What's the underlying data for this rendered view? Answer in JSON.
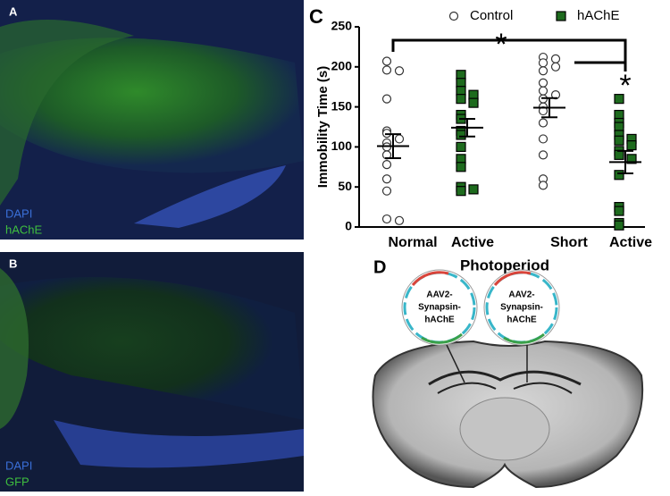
{
  "panels": {
    "A": {
      "label": "A",
      "stains": [
        "DAPI",
        "hAChE"
      ]
    },
    "B": {
      "label": "B",
      "stains": [
        "DAPI",
        "GFP"
      ]
    },
    "D": {
      "label": "D",
      "vectors": [
        [
          "AAV2-",
          "Synapsin-",
          "hAChE"
        ],
        [
          "AAV2-",
          "Synapsin-",
          "hAChE"
        ]
      ]
    }
  },
  "chart_data": {
    "type": "dot",
    "label": "C",
    "ylabel": "Immobility Time (s)",
    "xlabel": "Photoperiod",
    "categories": [
      "Normal",
      "Active",
      "Short",
      "Active"
    ],
    "ylim": [
      0,
      250
    ],
    "yticks": [
      0,
      50,
      100,
      150,
      200,
      250
    ],
    "series": [
      {
        "name": "Control",
        "color": "#ffffff",
        "marker": "circle"
      },
      {
        "name": "hAChE",
        "color": "#1e6b1e",
        "marker": "square"
      }
    ],
    "groups": [
      {
        "series": "Control",
        "values": [
          207,
          196,
          195,
          160,
          120,
          117,
          110,
          105,
          100,
          90,
          78,
          60,
          45,
          10,
          8
        ],
        "mean": 101,
        "sem": 15
      },
      {
        "series": "hAChE",
        "values": [
          190,
          180,
          170,
          165,
          160,
          155,
          140,
          135,
          120,
          115,
          100,
          85,
          75,
          50,
          47,
          45
        ],
        "mean": 124,
        "sem": 11
      },
      {
        "series": "Control",
        "values": [
          212,
          210,
          205,
          200,
          195,
          180,
          170,
          165,
          160,
          150,
          145,
          130,
          110,
          90,
          60,
          52
        ],
        "mean": 149,
        "sem": 12
      },
      {
        "series": "hAChE",
        "values": [
          160,
          140,
          130,
          125,
          115,
          110,
          108,
          102,
          95,
          90,
          85,
          65,
          25,
          20,
          5,
          2
        ],
        "mean": 81,
        "sem": 14
      }
    ],
    "annotations": [
      "*",
      "*"
    ]
  }
}
